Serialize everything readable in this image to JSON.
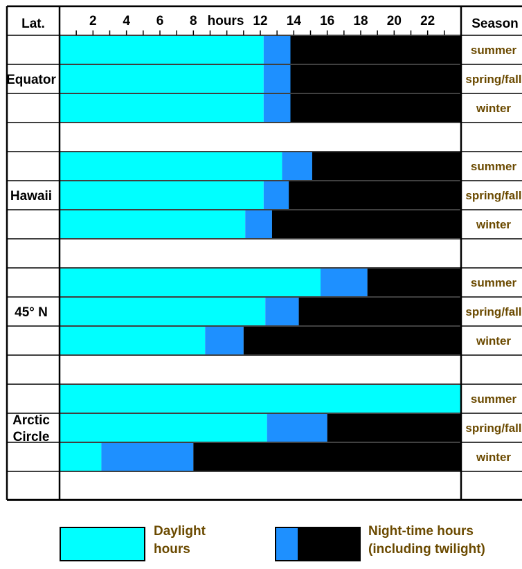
{
  "chart_data": {
    "type": "bar",
    "orientation": "horizontal",
    "stacked": true,
    "x_axis_label": "hours",
    "x_ticks": [
      2,
      4,
      6,
      8,
      12,
      14,
      16,
      18,
      20,
      22
    ],
    "xlim": [
      0,
      24
    ],
    "column_headers": {
      "latitude": "Lat.",
      "season": "Season"
    },
    "colors": {
      "daylight": "#00ffff",
      "twilight": "#1e90ff",
      "night": "#000000",
      "season_text": "#6b4a00"
    },
    "groups": [
      {
        "label_lines": [
          "Equator"
        ],
        "rows": [
          {
            "season": "summer",
            "daylight": 12.2,
            "twilight": 1.6
          },
          {
            "season": "spring/fall",
            "daylight": 12.2,
            "twilight": 1.6
          },
          {
            "season": "winter",
            "daylight": 12.2,
            "twilight": 1.6
          }
        ]
      },
      {
        "label_lines": [
          "Hawaii"
        ],
        "rows": [
          {
            "season": "summer",
            "daylight": 13.3,
            "twilight": 1.8
          },
          {
            "season": "spring/fall",
            "daylight": 12.2,
            "twilight": 1.5
          },
          {
            "season": "winter",
            "daylight": 11.1,
            "twilight": 1.6
          }
        ]
      },
      {
        "label_lines": [
          "45° N"
        ],
        "rows": [
          {
            "season": "summer",
            "daylight": 15.6,
            "twilight": 2.8
          },
          {
            "season": "spring/fall",
            "daylight": 12.3,
            "twilight": 2.0
          },
          {
            "season": "winter",
            "daylight": 8.7,
            "twilight": 2.3
          }
        ]
      },
      {
        "label_lines": [
          "Arctic",
          "Circle"
        ],
        "rows": [
          {
            "season": "summer",
            "daylight": 24.0,
            "twilight": 0.0
          },
          {
            "season": "spring/fall",
            "daylight": 12.4,
            "twilight": 3.6
          },
          {
            "season": "winter",
            "daylight": 2.5,
            "twilight": 5.5
          }
        ]
      }
    ],
    "legend": {
      "daylight_label": [
        "Daylight",
        "hours"
      ],
      "night_label": [
        "Night-time hours",
        "(including twilight)"
      ],
      "placement": "bottom"
    }
  }
}
